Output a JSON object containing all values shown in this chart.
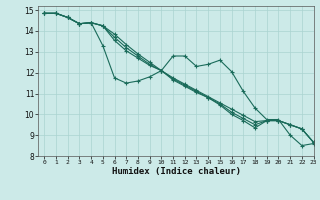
{
  "title": "",
  "xlabel": "Humidex (Indice chaleur)",
  "ylabel": "",
  "xlim": [
    -0.5,
    23
  ],
  "ylim": [
    8,
    15.2
  ],
  "xticks": [
    0,
    1,
    2,
    3,
    4,
    5,
    6,
    7,
    8,
    9,
    10,
    11,
    12,
    13,
    14,
    15,
    16,
    17,
    18,
    19,
    20,
    21,
    22,
    23
  ],
  "yticks": [
    8,
    9,
    10,
    11,
    12,
    13,
    14,
    15
  ],
  "bg_color": "#cceae8",
  "grid_color": "#aad4d0",
  "line_color": "#1a6b5a",
  "series1": [
    14.85,
    14.85,
    14.65,
    14.35,
    14.4,
    13.3,
    11.75,
    11.5,
    11.6,
    11.8,
    12.1,
    12.8,
    12.8,
    12.3,
    12.4,
    12.6,
    12.05,
    11.1,
    10.3,
    9.75,
    9.75,
    9.0,
    8.5,
    8.6
  ],
  "series2": [
    14.85,
    14.85,
    14.65,
    14.35,
    14.4,
    14.25,
    13.85,
    13.35,
    12.9,
    12.5,
    12.1,
    11.75,
    11.45,
    11.15,
    10.85,
    10.55,
    10.25,
    9.95,
    9.65,
    9.7,
    9.7,
    9.5,
    9.3,
    8.65
  ],
  "series3": [
    14.85,
    14.85,
    14.65,
    14.35,
    14.4,
    14.25,
    13.7,
    13.2,
    12.8,
    12.4,
    12.1,
    11.7,
    11.4,
    11.1,
    10.8,
    10.5,
    10.1,
    9.8,
    9.5,
    9.7,
    9.7,
    9.5,
    9.3,
    8.65
  ],
  "series4": [
    14.85,
    14.85,
    14.65,
    14.35,
    14.4,
    14.25,
    13.55,
    13.05,
    12.7,
    12.35,
    12.1,
    11.65,
    11.35,
    11.05,
    10.8,
    10.45,
    10.0,
    9.7,
    9.35,
    9.7,
    9.7,
    9.5,
    9.3,
    8.65
  ]
}
